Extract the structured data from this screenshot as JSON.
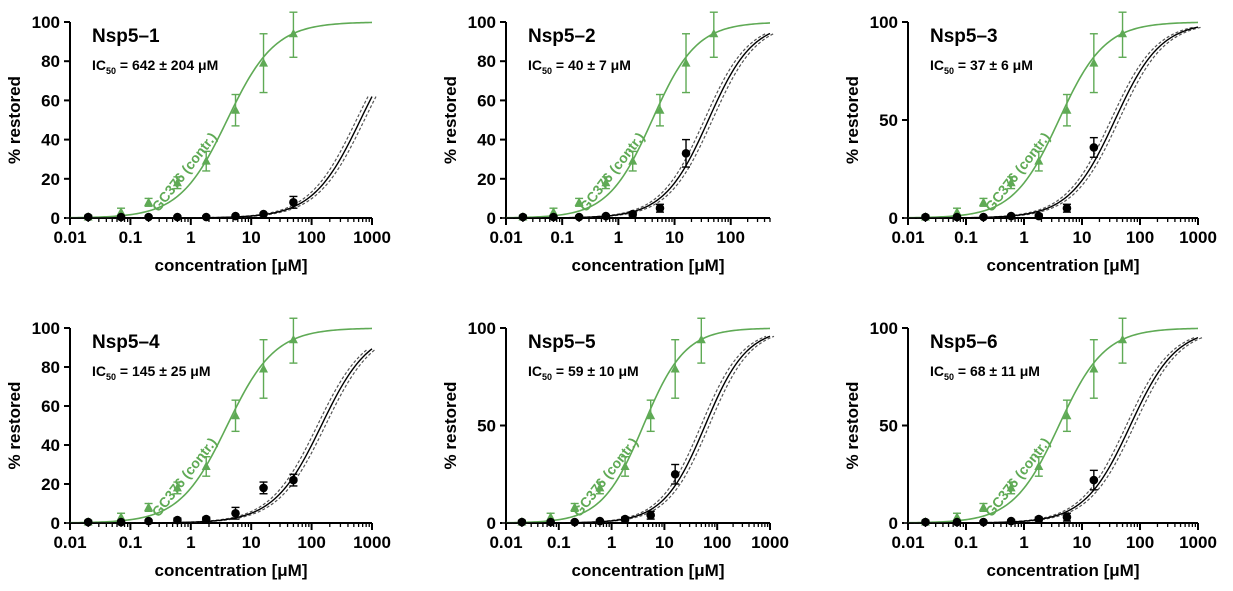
{
  "colors": {
    "control": "#5faa55",
    "compound": "#000000",
    "ci": "#555555"
  },
  "chart_data": [
    {
      "type": "scatter",
      "title": "Nsp5–1",
      "ic50": "IC50 = 642 ± 204 μM",
      "ic50_parts": {
        "prefix": "IC",
        "sub": "50",
        "suffix": " = 642 ± 204 μM"
      },
      "xlabel": "concentration [μM]",
      "ylabel": "% restored",
      "x_scale": "log",
      "xlim": [
        0.01,
        1000
      ],
      "ylim": [
        0,
        100
      ],
      "xticks": [
        0.01,
        0.1,
        1,
        10,
        100,
        1000
      ],
      "xtick_labels": [
        "0.01",
        "0.1",
        "1",
        "10",
        "100",
        "1000"
      ],
      "yticks": [
        0,
        20,
        40,
        60,
        80,
        100
      ],
      "ytick_labels": [
        "0",
        "20",
        "40",
        "60",
        "80",
        "100"
      ],
      "control_label": "GC376 (contr.)",
      "series": [
        {
          "name": "GC376 (contr.)",
          "points": [
            {
              "x": 0.02,
              "y": 0.5,
              "err": 1
            },
            {
              "x": 0.07,
              "y": 3,
              "err": 2
            },
            {
              "x": 0.2,
              "y": 8,
              "err": 2
            },
            {
              "x": 0.6,
              "y": 18,
              "err": 3
            },
            {
              "x": 1.8,
              "y": 29,
              "err": 5
            },
            {
              "x": 5.5,
              "y": 55,
              "err": 8
            },
            {
              "x": 16,
              "y": 79,
              "err": 15
            },
            {
              "x": 50,
              "y": 94,
              "err": 12
            }
          ],
          "fit": {
            "ic50": 4,
            "hill": 1.1
          }
        },
        {
          "name": "",
          "points": [
            {
              "x": 0.02,
              "y": 0.5,
              "err": 0.5
            },
            {
              "x": 0.07,
              "y": 0.5,
              "err": 0.5
            },
            {
              "x": 0.2,
              "y": 0.5,
              "err": 0.5
            },
            {
              "x": 0.6,
              "y": 0.5,
              "err": 0.5
            },
            {
              "x": 1.8,
              "y": 0.5,
              "err": 0.5
            },
            {
              "x": 5.5,
              "y": 1,
              "err": 0.5
            },
            {
              "x": 16,
              "y": 2,
              "err": 0.5
            },
            {
              "x": 50,
              "y": 8,
              "err": 3
            }
          ],
          "fit": {
            "ic50": 642,
            "hill": 1.1
          }
        }
      ]
    },
    {
      "type": "scatter",
      "title": "Nsp5–2",
      "ic50": "IC50 = 40 ± 7 μM",
      "ic50_parts": {
        "prefix": "IC",
        "sub": "50",
        "suffix": " = 40 ± 7 μM"
      },
      "xlabel": "concentration [μM]",
      "ylabel": "% restored",
      "x_scale": "log",
      "xlim": [
        0.01,
        500
      ],
      "ylim": [
        0,
        100
      ],
      "xticks": [
        0.01,
        0.1,
        1,
        10,
        100
      ],
      "xtick_labels": [
        "0.01",
        "0.1",
        "1",
        "10",
        "100"
      ],
      "yticks": [
        0,
        20,
        40,
        60,
        80,
        100
      ],
      "ytick_labels": [
        "0",
        "20",
        "40",
        "60",
        "80",
        "100"
      ],
      "control_label": "GC376 (contr.)",
      "series": [
        {
          "name": "GC376 (contr.)",
          "points": [
            {
              "x": 0.02,
              "y": 0.5,
              "err": 1
            },
            {
              "x": 0.07,
              "y": 3,
              "err": 2
            },
            {
              "x": 0.2,
              "y": 8,
              "err": 2
            },
            {
              "x": 0.6,
              "y": 18,
              "err": 3
            },
            {
              "x": 1.8,
              "y": 29,
              "err": 5
            },
            {
              "x": 5.5,
              "y": 55,
              "err": 8
            },
            {
              "x": 16,
              "y": 79,
              "err": 15
            },
            {
              "x": 50,
              "y": 94,
              "err": 12
            }
          ],
          "fit": {
            "ic50": 4,
            "hill": 1.1
          }
        },
        {
          "name": "",
          "points": [
            {
              "x": 0.02,
              "y": 0.5,
              "err": 0.5
            },
            {
              "x": 0.07,
              "y": 0.5,
              "err": 0.5
            },
            {
              "x": 0.2,
              "y": 0.5,
              "err": 0.5
            },
            {
              "x": 0.6,
              "y": 1,
              "err": 0.5
            },
            {
              "x": 1.8,
              "y": 2,
              "err": 1
            },
            {
              "x": 5.5,
              "y": 5,
              "err": 2
            },
            {
              "x": 16,
              "y": 33,
              "err": 7
            }
          ],
          "fit": {
            "ic50": 40,
            "hill": 1.1
          }
        }
      ]
    },
    {
      "type": "scatter",
      "title": "Nsp5–3",
      "ic50": "IC50 = 37 ± 6 μM",
      "ic50_parts": {
        "prefix": "IC",
        "sub": "50",
        "suffix": " = 37 ± 6 μM"
      },
      "xlabel": "concentration [μM]",
      "ylabel": "% restored",
      "x_scale": "log",
      "xlim": [
        0.01,
        1000
      ],
      "ylim": [
        0,
        100
      ],
      "xticks": [
        0.01,
        0.1,
        1,
        10,
        100,
        1000
      ],
      "xtick_labels": [
        "0.01",
        "0.1",
        "1",
        "10",
        "100",
        "1000"
      ],
      "yticks": [
        0,
        50,
        100
      ],
      "ytick_labels": [
        "0",
        "50",
        "100"
      ],
      "control_label": "GC376 (contr.)",
      "series": [
        {
          "name": "GC376 (contr.)",
          "points": [
            {
              "x": 0.02,
              "y": 0.5,
              "err": 1
            },
            {
              "x": 0.07,
              "y": 3,
              "err": 2
            },
            {
              "x": 0.2,
              "y": 8,
              "err": 2
            },
            {
              "x": 0.6,
              "y": 18,
              "err": 3
            },
            {
              "x": 1.8,
              "y": 29,
              "err": 5
            },
            {
              "x": 5.5,
              "y": 55,
              "err": 8
            },
            {
              "x": 16,
              "y": 79,
              "err": 15
            },
            {
              "x": 50,
              "y": 94,
              "err": 12
            }
          ],
          "fit": {
            "ic50": 4,
            "hill": 1.1
          }
        },
        {
          "name": "",
          "points": [
            {
              "x": 0.02,
              "y": 0.5,
              "err": 0.5
            },
            {
              "x": 0.07,
              "y": 0.5,
              "err": 0.5
            },
            {
              "x": 0.2,
              "y": 0.5,
              "err": 0.5
            },
            {
              "x": 0.6,
              "y": 1,
              "err": 0.5
            },
            {
              "x": 1.8,
              "y": 1,
              "err": 1
            },
            {
              "x": 5.5,
              "y": 5,
              "err": 2
            },
            {
              "x": 16,
              "y": 36,
              "err": 5
            }
          ],
          "fit": {
            "ic50": 37,
            "hill": 1.1
          }
        }
      ]
    },
    {
      "type": "scatter",
      "title": "Nsp5–4",
      "ic50": "IC50 = 145 ± 25 μM",
      "ic50_parts": {
        "prefix": "IC",
        "sub": "50",
        "suffix": " = 145 ± 25 μM"
      },
      "xlabel": "concentration [μM]",
      "ylabel": "% restored",
      "x_scale": "log",
      "xlim": [
        0.01,
        1000
      ],
      "ylim": [
        0,
        100
      ],
      "xticks": [
        0.01,
        0.1,
        1,
        10,
        100,
        1000
      ],
      "xtick_labels": [
        "0.01",
        "0.1",
        "1",
        "10",
        "100",
        "1000"
      ],
      "yticks": [
        0,
        20,
        40,
        60,
        80,
        100
      ],
      "ytick_labels": [
        "0",
        "20",
        "40",
        "60",
        "80",
        "100"
      ],
      "control_label": "GC376 (contr.)",
      "series": [
        {
          "name": "GC376 (contr.)",
          "points": [
            {
              "x": 0.02,
              "y": 0.5,
              "err": 1
            },
            {
              "x": 0.07,
              "y": 3,
              "err": 2
            },
            {
              "x": 0.2,
              "y": 8,
              "err": 2
            },
            {
              "x": 0.6,
              "y": 18,
              "err": 3
            },
            {
              "x": 1.8,
              "y": 29,
              "err": 5
            },
            {
              "x": 5.5,
              "y": 55,
              "err": 8
            },
            {
              "x": 16,
              "y": 79,
              "err": 15
            },
            {
              "x": 50,
              "y": 94,
              "err": 12
            }
          ],
          "fit": {
            "ic50": 4,
            "hill": 1.1
          }
        },
        {
          "name": "",
          "points": [
            {
              "x": 0.02,
              "y": 0.5,
              "err": 0.5
            },
            {
              "x": 0.07,
              "y": 0.5,
              "err": 0.5
            },
            {
              "x": 0.2,
              "y": 1,
              "err": 0.5
            },
            {
              "x": 0.6,
              "y": 1.5,
              "err": 1
            },
            {
              "x": 1.8,
              "y": 2,
              "err": 1
            },
            {
              "x": 5.5,
              "y": 5,
              "err": 3
            },
            {
              "x": 16,
              "y": 18,
              "err": 3
            },
            {
              "x": 50,
              "y": 22,
              "err": 3
            }
          ],
          "fit": {
            "ic50": 145,
            "hill": 1.1
          }
        }
      ]
    },
    {
      "type": "scatter",
      "title": "Nsp5–5",
      "ic50": "IC50 = 59 ± 10 μM",
      "ic50_parts": {
        "prefix": "IC",
        "sub": "50",
        "suffix": " = 59 ± 10 μM"
      },
      "xlabel": "concentration [μM]",
      "ylabel": "% restored",
      "x_scale": "log",
      "xlim": [
        0.01,
        1000
      ],
      "ylim": [
        0,
        100
      ],
      "xticks": [
        0.01,
        0.1,
        1,
        10,
        100,
        1000
      ],
      "xtick_labels": [
        "0.01",
        "0.1",
        "1",
        "10",
        "100",
        "1000"
      ],
      "yticks": [
        0,
        50,
        100
      ],
      "ytick_labels": [
        "0",
        "50",
        "100"
      ],
      "control_label": "GC376 (contr.)",
      "series": [
        {
          "name": "GC376 (contr.)",
          "points": [
            {
              "x": 0.02,
              "y": 0.5,
              "err": 1
            },
            {
              "x": 0.07,
              "y": 3,
              "err": 2
            },
            {
              "x": 0.2,
              "y": 8,
              "err": 2
            },
            {
              "x": 0.6,
              "y": 18,
              "err": 3
            },
            {
              "x": 1.8,
              "y": 29,
              "err": 5
            },
            {
              "x": 5.5,
              "y": 55,
              "err": 8
            },
            {
              "x": 16,
              "y": 79,
              "err": 15
            },
            {
              "x": 50,
              "y": 94,
              "err": 12
            }
          ],
          "fit": {
            "ic50": 4,
            "hill": 1.1
          }
        },
        {
          "name": "",
          "points": [
            {
              "x": 0.02,
              "y": 0.5,
              "err": 0.5
            },
            {
              "x": 0.07,
              "y": 0.5,
              "err": 0.5
            },
            {
              "x": 0.2,
              "y": 0.5,
              "err": 0.5
            },
            {
              "x": 0.6,
              "y": 1,
              "err": 0.5
            },
            {
              "x": 1.8,
              "y": 2,
              "err": 1
            },
            {
              "x": 5.5,
              "y": 4,
              "err": 2
            },
            {
              "x": 16,
              "y": 25,
              "err": 5
            }
          ],
          "fit": {
            "ic50": 59,
            "hill": 1.1
          }
        }
      ]
    },
    {
      "type": "scatter",
      "title": "Nsp5–6",
      "ic50": "IC50 = 68 ± 11 μM",
      "ic50_parts": {
        "prefix": "IC",
        "sub": "50",
        "suffix": " = 68 ± 11 μM"
      },
      "xlabel": "concentration [μM]",
      "ylabel": "% restored",
      "x_scale": "log",
      "xlim": [
        0.01,
        1000
      ],
      "ylim": [
        0,
        100
      ],
      "xticks": [
        0.01,
        0.1,
        1,
        10,
        100,
        1000
      ],
      "xtick_labels": [
        "0.01",
        "0.1",
        "1",
        "10",
        "100",
        "1000"
      ],
      "yticks": [
        0,
        50,
        100
      ],
      "ytick_labels": [
        "0",
        "50",
        "100"
      ],
      "control_label": "GC376 (contr.)",
      "series": [
        {
          "name": "GC376 (contr.)",
          "points": [
            {
              "x": 0.02,
              "y": 0.5,
              "err": 1
            },
            {
              "x": 0.07,
              "y": 3,
              "err": 2
            },
            {
              "x": 0.2,
              "y": 8,
              "err": 2
            },
            {
              "x": 0.6,
              "y": 18,
              "err": 3
            },
            {
              "x": 1.8,
              "y": 29,
              "err": 5
            },
            {
              "x": 5.5,
              "y": 55,
              "err": 8
            },
            {
              "x": 16,
              "y": 79,
              "err": 15
            },
            {
              "x": 50,
              "y": 94,
              "err": 12
            }
          ],
          "fit": {
            "ic50": 4,
            "hill": 1.1
          }
        },
        {
          "name": "",
          "points": [
            {
              "x": 0.02,
              "y": 0.5,
              "err": 0.5
            },
            {
              "x": 0.07,
              "y": 0.5,
              "err": 0.5
            },
            {
              "x": 0.2,
              "y": 0.5,
              "err": 0.5
            },
            {
              "x": 0.6,
              "y": 1,
              "err": 0.5
            },
            {
              "x": 1.8,
              "y": 2,
              "err": 1
            },
            {
              "x": 5.5,
              "y": 3,
              "err": 2
            },
            {
              "x": 16,
              "y": 22,
              "err": 5
            }
          ],
          "fit": {
            "ic50": 68,
            "hill": 1.1
          }
        }
      ]
    }
  ]
}
